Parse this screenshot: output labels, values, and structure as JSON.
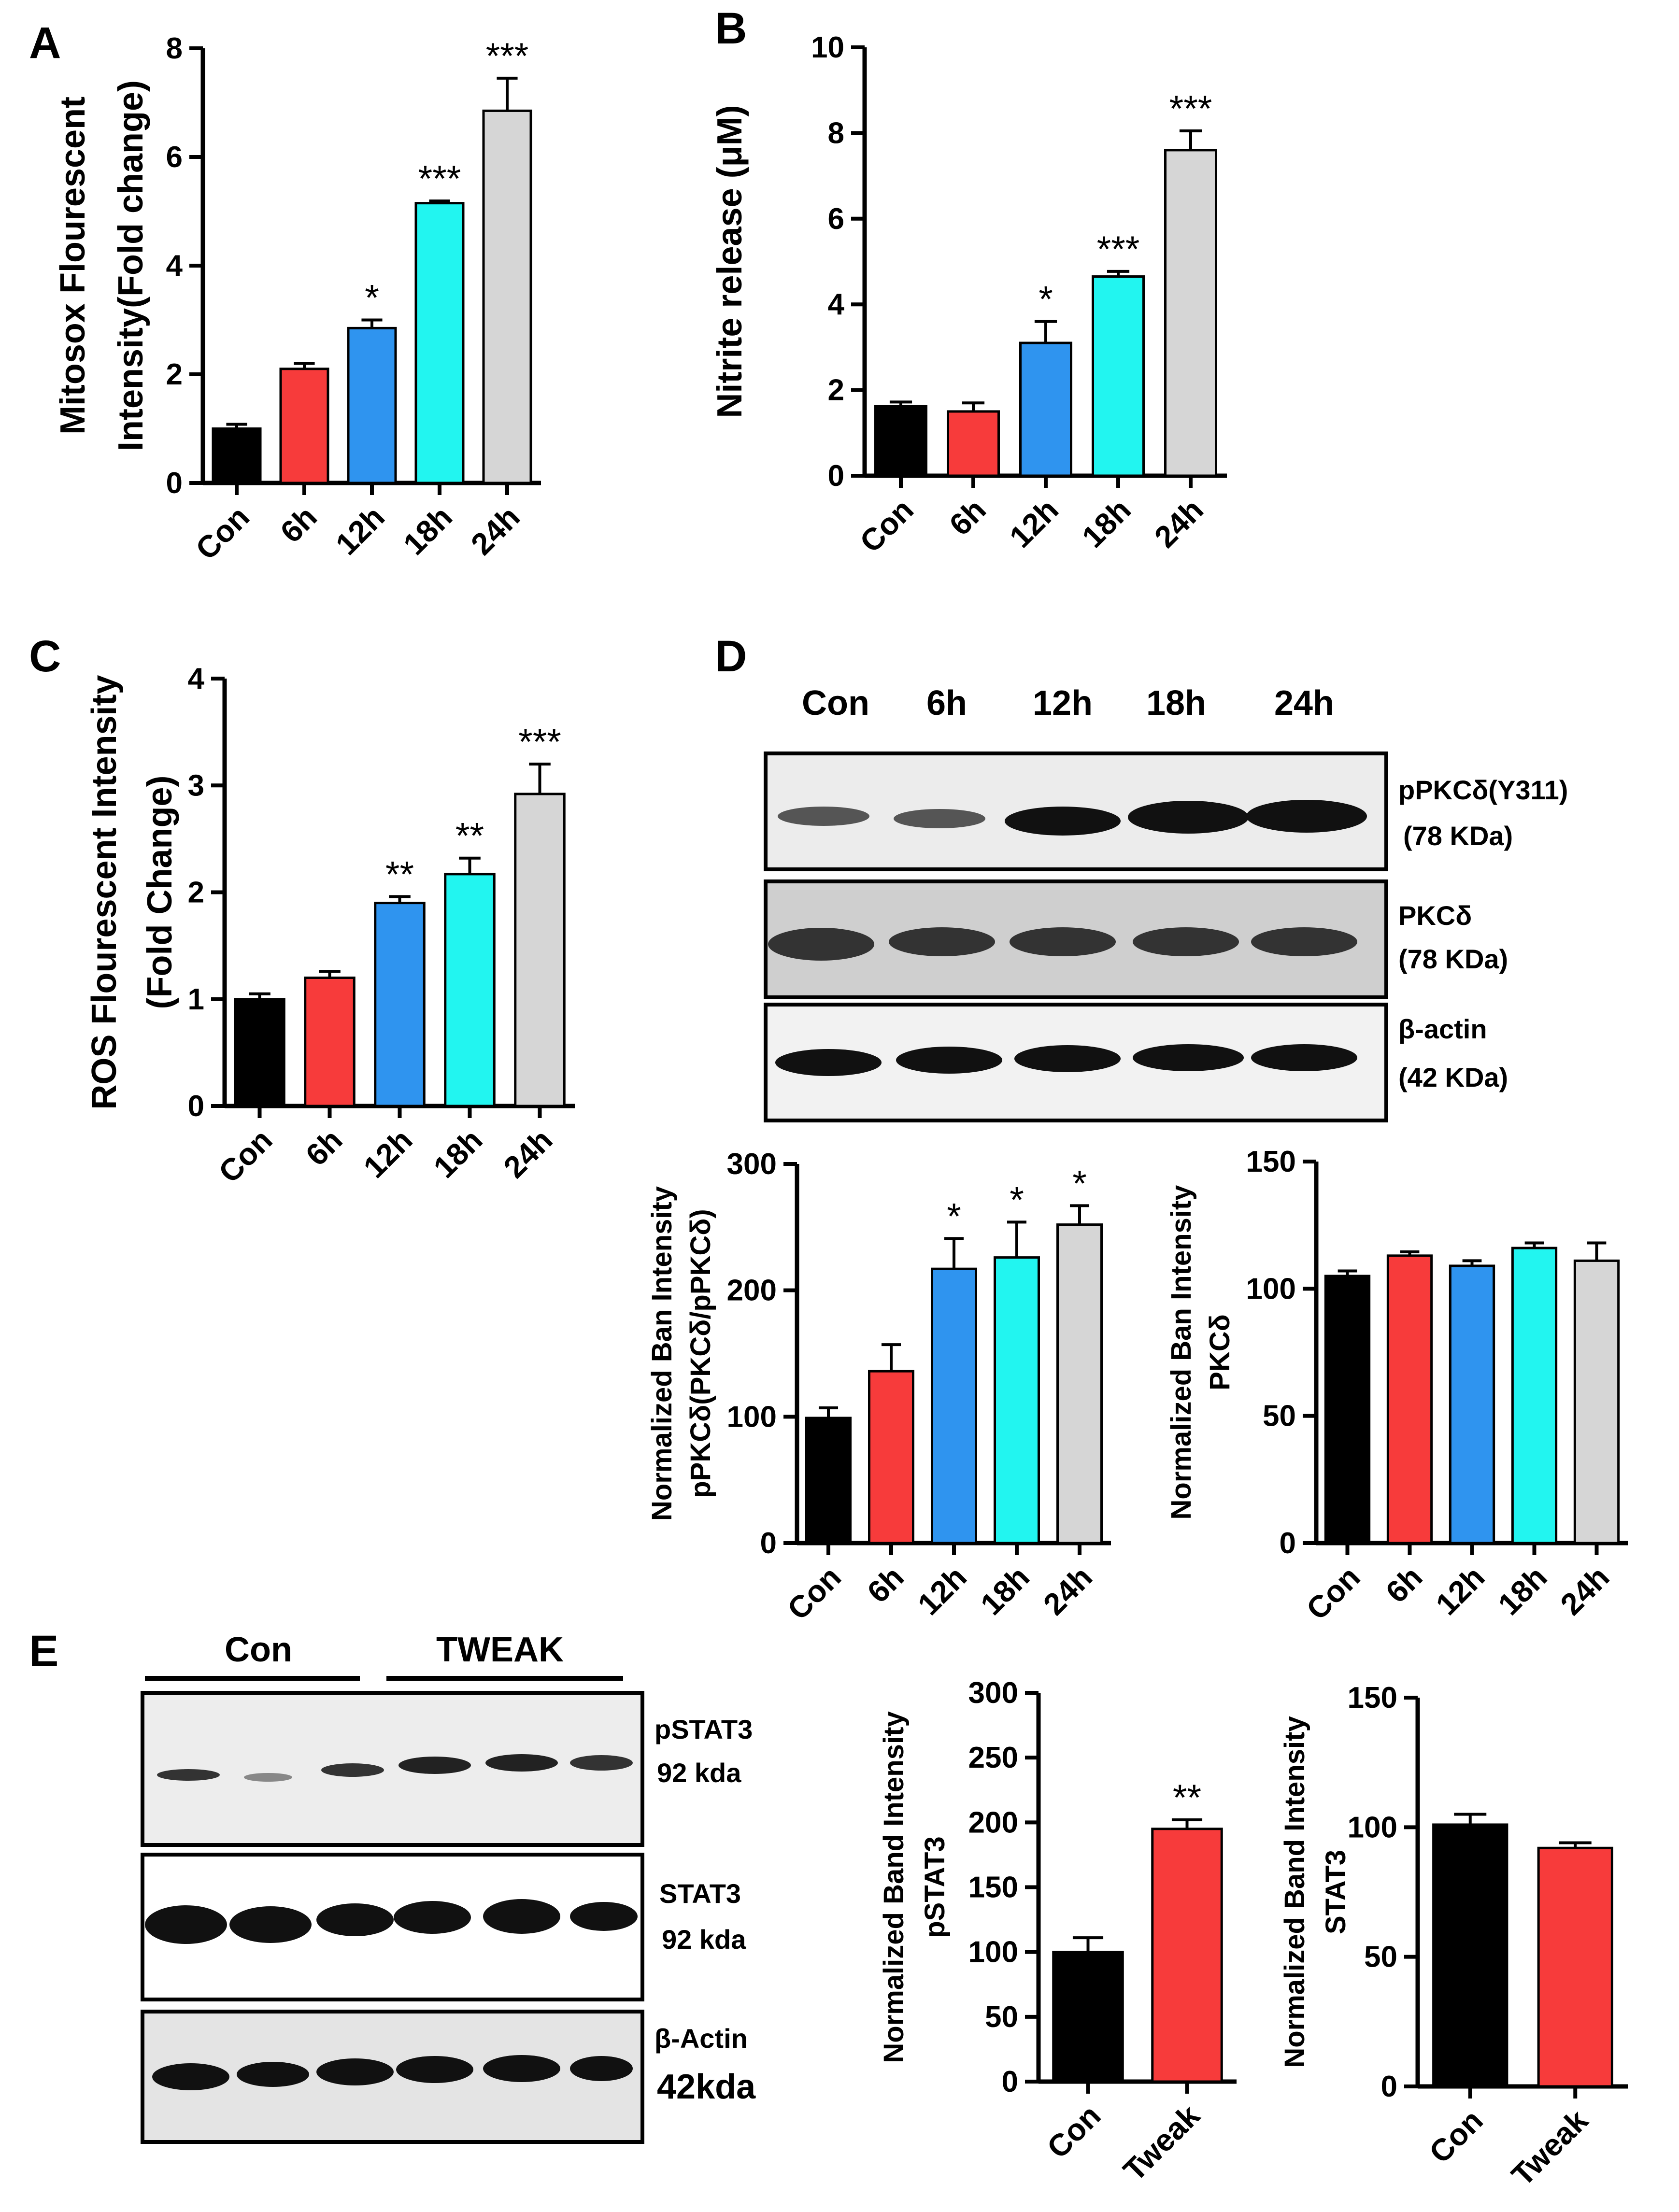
{
  "panel_letters": {
    "a": "A",
    "b": "B",
    "c": "C",
    "d": "D",
    "e": "E"
  },
  "colors": {
    "con": "#000000",
    "6h": "#f73b3b",
    "12h": "#2f94ef",
    "18h": "#22f5f0",
    "24h": "#d6d6d6",
    "tweak": "#f73b3b"
  },
  "chart_data": [
    {
      "id": "A",
      "type": "bar",
      "title": "",
      "ylabel_line1": "Mitosox Flourescent",
      "ylabel_line2": "Intensity(Fold change)",
      "categories": [
        "Con",
        "6h",
        "12h",
        "18h",
        "24h"
      ],
      "values": [
        1.0,
        2.1,
        2.85,
        5.15,
        6.85
      ],
      "errors": [
        0.08,
        0.1,
        0.15,
        0.04,
        0.6
      ],
      "significance": [
        "",
        "",
        "*",
        "***",
        "***"
      ],
      "ylim": [
        0,
        8
      ],
      "yticks": [
        "0",
        "2",
        "4",
        "6",
        "8"
      ]
    },
    {
      "id": "B",
      "type": "bar",
      "title": "",
      "ylabel_line1": "Nitrite release (μM)",
      "ylabel_line2": "",
      "categories": [
        "Con",
        "6h",
        "12h",
        "18h",
        "24h"
      ],
      "values": [
        1.62,
        1.5,
        3.1,
        4.65,
        7.6
      ],
      "errors": [
        0.1,
        0.2,
        0.5,
        0.12,
        0.45
      ],
      "significance": [
        "",
        "",
        "*",
        "***",
        "***"
      ],
      "ylim": [
        0,
        10
      ],
      "yticks": [
        "0",
        "2",
        "4",
        "6",
        "8",
        "10"
      ]
    },
    {
      "id": "C",
      "type": "bar",
      "title": "",
      "ylabel_line1": "ROS Flourescent Intensity",
      "ylabel_line2": "(Fold Change)",
      "categories": [
        "Con",
        "6h",
        "12h",
        "18h",
        "24h"
      ],
      "values": [
        1.0,
        1.2,
        1.9,
        2.17,
        2.92
      ],
      "errors": [
        0.05,
        0.06,
        0.06,
        0.15,
        0.28
      ],
      "significance": [
        "",
        "",
        "**",
        "**",
        "***"
      ],
      "ylim": [
        0,
        4
      ],
      "yticks": [
        "0",
        "1",
        "2",
        "3",
        "4"
      ]
    },
    {
      "id": "D1",
      "type": "bar",
      "title": "",
      "ylabel_line1": "Normalized Ban Intensity",
      "ylabel_line2": "pPKCδ(PKCδ/pPKCδ)",
      "categories": [
        "Con",
        "6h",
        "12h",
        "18h",
        "24h"
      ],
      "values": [
        99,
        136,
        217,
        226,
        252
      ],
      "errors": [
        8,
        21,
        24,
        28,
        15
      ],
      "significance": [
        "",
        "",
        "*",
        "*",
        "*"
      ],
      "ylim": [
        0,
        300
      ],
      "yticks": [
        "0",
        "100",
        "200",
        "300"
      ]
    },
    {
      "id": "D2",
      "type": "bar",
      "title": "",
      "ylabel_line1": "Normalized Ban Intensity",
      "ylabel_line2": "PKCδ",
      "categories": [
        "Con",
        "6h",
        "12h",
        "18h",
        "24h"
      ],
      "values": [
        105,
        113,
        109,
        116,
        111
      ],
      "errors": [
        2,
        1.5,
        2,
        2,
        7
      ],
      "significance": [
        "",
        "",
        "",
        "",
        ""
      ],
      "ylim": [
        0,
        150
      ],
      "yticks": [
        "0",
        "50",
        "100",
        "150"
      ]
    },
    {
      "id": "E1",
      "type": "bar",
      "title": "",
      "ylabel_line1": "Normalized Band Intensity",
      "ylabel_line2": "pSTAT3",
      "categories": [
        "Con",
        "Tweak"
      ],
      "values": [
        100,
        195
      ],
      "errors": [
        11,
        7
      ],
      "significance": [
        "",
        "**"
      ],
      "ylim": [
        0,
        300
      ],
      "yticks": [
        "0",
        "50",
        "100",
        "150",
        "200",
        "250",
        "300"
      ]
    },
    {
      "id": "E2",
      "type": "bar",
      "title": "",
      "ylabel_line1": "Normalized Band Intensity",
      "ylabel_line2": "STAT3",
      "categories": [
        "Con",
        "Tweak"
      ],
      "values": [
        101,
        92
      ],
      "errors": [
        4,
        2
      ],
      "significance": [
        "",
        ""
      ],
      "ylim": [
        0,
        150
      ],
      "yticks": [
        "0",
        "50",
        "100",
        "150"
      ]
    }
  ],
  "blot_d": {
    "lanes": [
      "Con",
      "6h",
      "12h",
      "18h",
      "24h"
    ],
    "rows": [
      {
        "label": "pPKCδ(Y311)",
        "size": "(78 KDa)"
      },
      {
        "label": "PKCδ",
        "size": "(78 KDa)"
      },
      {
        "label": "β-actin",
        "size": "(42 KDa)"
      }
    ]
  },
  "blot_e": {
    "groups": [
      "Con",
      "TWEAK"
    ],
    "rows": [
      {
        "label": "pSTAT3",
        "size": "92 kda"
      },
      {
        "label": "STAT3",
        "size": "92 kda"
      },
      {
        "label": "β-Actin",
        "size": "42kda"
      }
    ]
  }
}
